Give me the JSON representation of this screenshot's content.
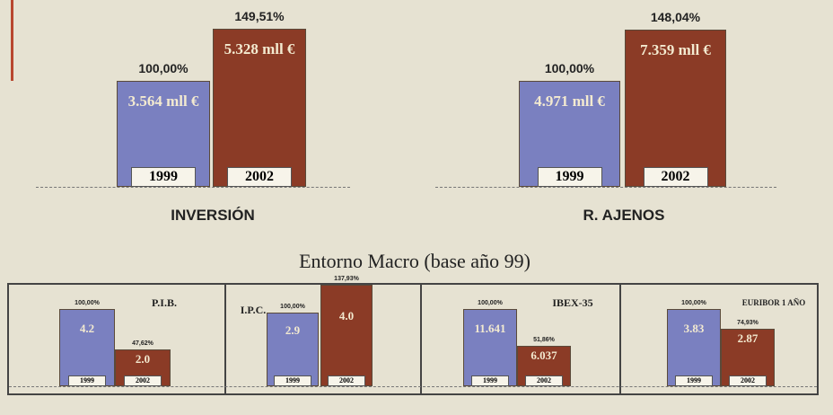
{
  "heading": "Entorno Macro (base año 99)",
  "chart_data": [
    {
      "type": "bar",
      "title": "INVERSIÓN",
      "categories": [
        "1999",
        "2002"
      ],
      "values": [
        100,
        149.51
      ],
      "value_labels": [
        "100,00%",
        "149,51%"
      ],
      "amounts": [
        "3.564 mll €",
        "5.328 mll €"
      ],
      "colors": [
        "#7a80c0",
        "#8b3b26"
      ]
    },
    {
      "type": "bar",
      "title": "R. AJENOS",
      "categories": [
        "1999",
        "2002"
      ],
      "values": [
        100,
        148.04
      ],
      "value_labels": [
        "100,00%",
        "148,04%"
      ],
      "amounts": [
        "4.971 mll €",
        "7.359 mll €"
      ],
      "colors": [
        "#7a80c0",
        "#8b3b26"
      ]
    },
    {
      "type": "bar",
      "title": "P.I.B.",
      "categories": [
        "1999",
        "2002"
      ],
      "values": [
        100,
        47.62
      ],
      "value_labels": [
        "100,00%",
        "47,62%"
      ],
      "amounts": [
        "4.2",
        "2.0"
      ],
      "colors": [
        "#7a80c0",
        "#8b3b26"
      ]
    },
    {
      "type": "bar",
      "title": "I.P.C.",
      "categories": [
        "1999",
        "2002"
      ],
      "values": [
        100,
        137.93
      ],
      "value_labels": [
        "100,00%",
        "137,93%"
      ],
      "amounts": [
        "2.9",
        "4.0"
      ],
      "colors": [
        "#7a80c0",
        "#8b3b26"
      ]
    },
    {
      "type": "bar",
      "title": "IBEX-35",
      "categories": [
        "1999",
        "2002"
      ],
      "values": [
        100,
        51.86
      ],
      "value_labels": [
        "100,00%",
        "51,86%"
      ],
      "amounts": [
        "11.641",
        "6.037"
      ],
      "colors": [
        "#7a80c0",
        "#8b3b26"
      ]
    },
    {
      "type": "bar",
      "title": "EURIBOR 1 AÑO",
      "categories": [
        "1999",
        "2002"
      ],
      "values": [
        100,
        74.93
      ],
      "value_labels": [
        "100,00%",
        "74,93%"
      ],
      "amounts": [
        "3.83",
        "2.87"
      ],
      "colors": [
        "#7a80c0",
        "#8b3b26"
      ]
    }
  ]
}
